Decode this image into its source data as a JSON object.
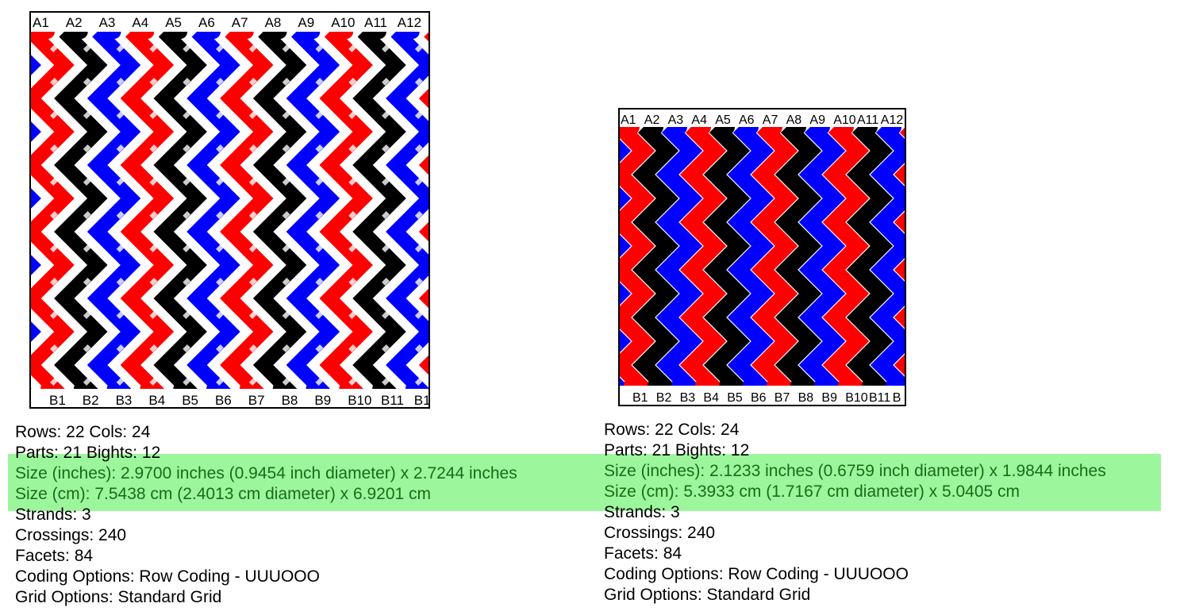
{
  "colors": {
    "strand_1": "#ff0000",
    "strand_2": "#000000",
    "strand_3": "#0000ff",
    "highlight": "#9cf79c",
    "highlight_text": "#1a6b1a"
  },
  "panels": [
    {
      "variant": "interwoven",
      "top_labels": [
        "A1",
        "A2",
        "A3",
        "A4",
        "A5",
        "A6",
        "A7",
        "A8",
        "A9",
        "A10",
        "A11",
        "A12"
      ],
      "bottom_labels": [
        "B1",
        "B2",
        "B3",
        "B4",
        "B5",
        "B6",
        "B7",
        "B8",
        "B9",
        "B10",
        "B11",
        "B1"
      ],
      "stats": {
        "rows_cols": "Rows: 22 Cols: 24",
        "parts_bights": "Parts: 21 Bights: 12",
        "size_inches": "Size (inches): 2.9700 inches (0.9454 inch diameter) x 2.7244 inches",
        "size_cm": "Size (cm): 7.5438 cm (2.4013 cm diameter) x 6.9201 cm",
        "strands": "Strands: 3",
        "crossings": "Crossings: 240",
        "facets": "Facets: 84",
        "coding": "Coding Options: Row Coding - UUUOOO",
        "grid": "Grid Options: Standard Grid"
      }
    },
    {
      "variant": "solid",
      "top_labels": [
        "A1",
        "A2",
        "A3",
        "A4",
        "A5",
        "A6",
        "A7",
        "A8",
        "A9",
        "A10",
        "A11",
        "A12"
      ],
      "bottom_labels": [
        "B1",
        "B2",
        "B3",
        "B4",
        "B5",
        "B6",
        "B7",
        "B8",
        "B9",
        "B10",
        "B11",
        "B"
      ],
      "stats": {
        "rows_cols": "Rows: 22 Cols: 24",
        "parts_bights": "Parts: 21 Bights: 12",
        "size_inches": "Size (inches): 2.1233 inches (0.6759 inch diameter) x 1.9844 inches",
        "size_cm": "Size (cm): 5.3933 cm (1.7167 cm diameter) x 5.0405 cm",
        "strands": "Strands: 3",
        "crossings": "Crossings: 240",
        "facets": "Facets: 84",
        "coding": "Coding Options: Row Coding - UUUOOO",
        "grid": "Grid Options: Standard Grid"
      }
    }
  ]
}
